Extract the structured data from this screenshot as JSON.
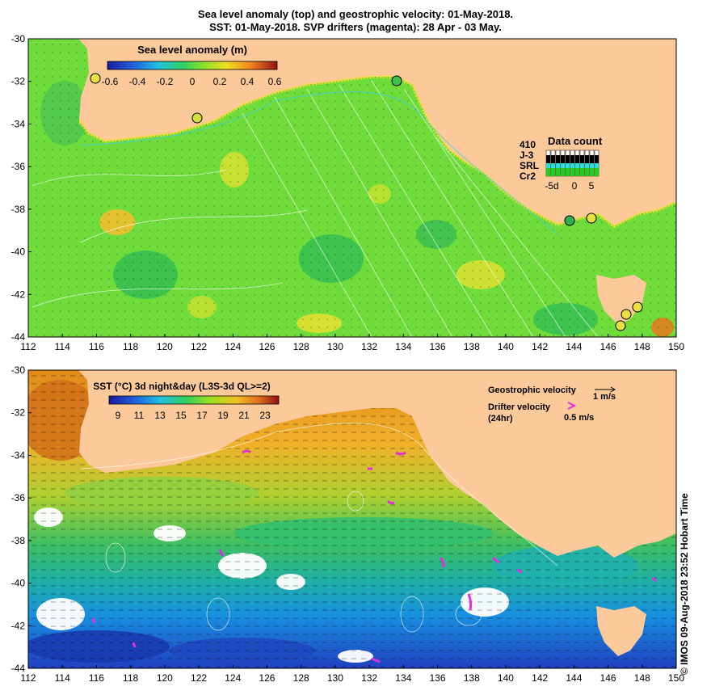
{
  "title_line1": "Sea level anomaly (top) and geostrophic velocity: 01-May-2018.",
  "title_line2": "SST: 01-May-2018. SVP drifters (magenta): 28 Apr - 03 May.",
  "top_panel": {
    "colorbar_title": "Sea level anomaly (m)",
    "colorbar_ticks": [
      "-0.6",
      "-0.4",
      "-0.2",
      "0",
      "0.2",
      "0.4",
      "0.6"
    ],
    "data_count": {
      "title": "Data count",
      "rows": [
        {
          "label": "410",
          "color": "#000000"
        },
        {
          "label": "J-3",
          "color": "#000000"
        },
        {
          "label": "SRL",
          "color": "#20e0e0"
        },
        {
          "label": "Cr2",
          "color": "#20d020"
        }
      ],
      "ticks": [
        "-5d",
        "0",
        "5"
      ]
    }
  },
  "bottom_panel": {
    "colorbar_title": "SST (°C) 3d night&day (L3S-3d QL>=2)",
    "colorbar_ticks": [
      "9",
      "11",
      "13",
      "15",
      "17",
      "19",
      "21",
      "23"
    ],
    "geo_velocity_label": "Geostrophic velocity",
    "geo_velocity_scale": "1 m/s",
    "drifter_label_1": "Drifter velocity",
    "drifter_label_2": "(24hr)",
    "drifter_scale": "0.5 m/s"
  },
  "x_ticks": [
    "112",
    "114",
    "116",
    "118",
    "120",
    "122",
    "124",
    "126",
    "128",
    "130",
    "132",
    "134",
    "136",
    "138",
    "140",
    "142",
    "144",
    "146",
    "148",
    "150"
  ],
  "y_ticks": [
    "-30",
    "-32",
    "-34",
    "-36",
    "-38",
    "-40",
    "-42",
    "-44"
  ],
  "credit": "©  IMOS 09-Aug-2018 23:52 Hobart Time",
  "colors": {
    "land": "#fcc99a",
    "ocean_sla": "#6fdc3c",
    "sst_warm": "#f0a020",
    "sst_mid": "#40c080",
    "sst_cold": "#2050e0",
    "drifter": "#e030e0"
  }
}
